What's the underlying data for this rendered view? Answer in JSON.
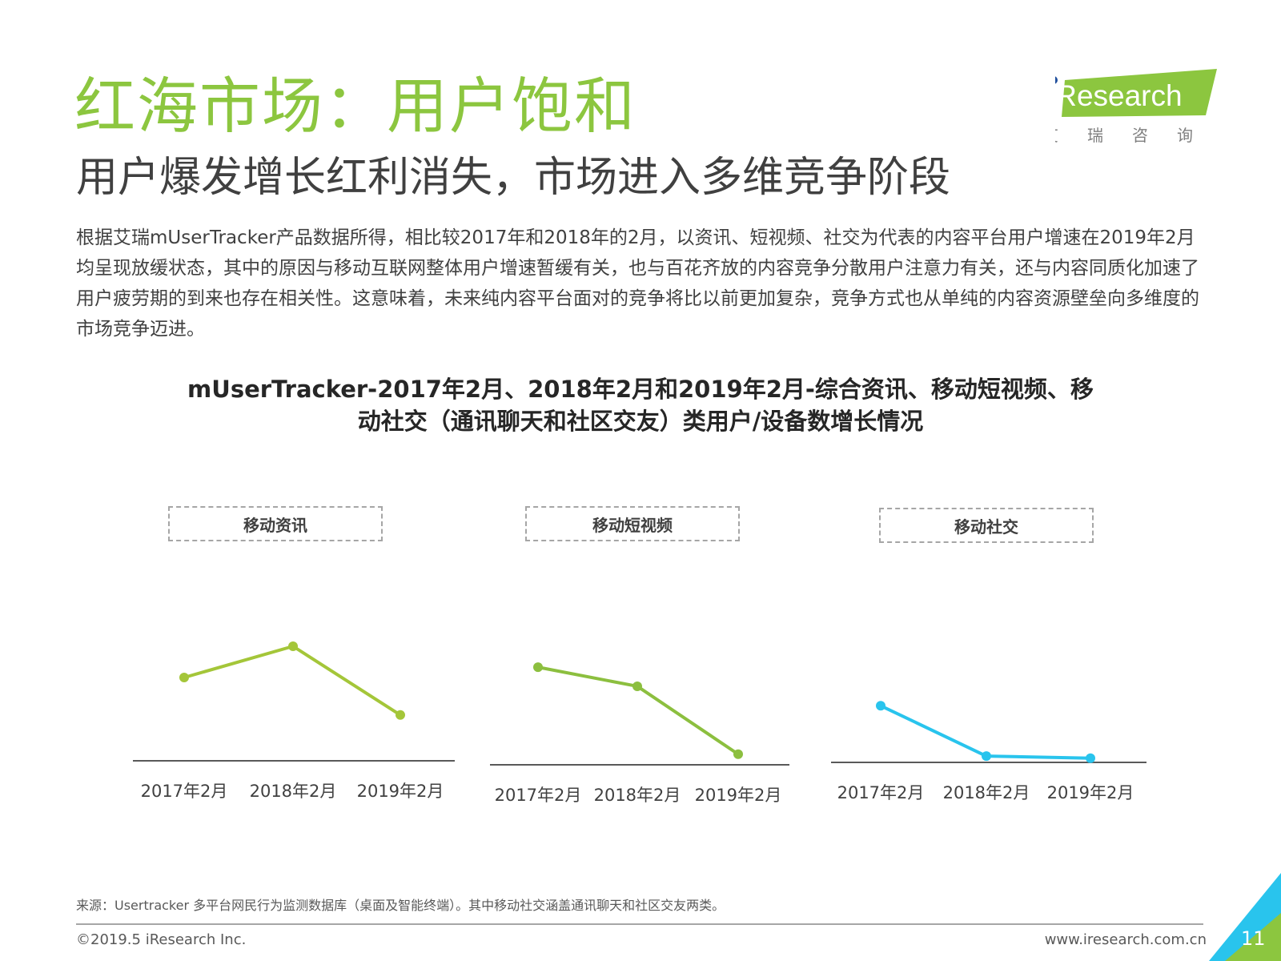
{
  "header": {
    "title": "红海市场：用户饱和",
    "subtitle": "用户爆发增长红利消失，市场进入多维竞争阶段",
    "body": "根据艾瑞mUserTracker产品数据所得，相比较2017年和2018年的2月，以资讯、短视频、社交为代表的内容平台用户增速在2019年2月均呈现放缓状态，其中的原因与移动互联网整体用户增速暂缓有关，也与百花齐放的内容竞争分散用户注意力有关，还与内容同质化加速了用户疲劳期的到来也存在相关性。这意味着，未来纯内容平台面对的竞争将比以前更加复杂，竞争方式也从单纯的内容资源壁垒向多维度的市场竞争迈进。"
  },
  "logo": {
    "brand": "iResearch",
    "cn": [
      "艾",
      "瑞",
      "咨",
      "询"
    ],
    "color": "#8cc63f"
  },
  "chart_title": {
    "line1": "mUserTracker-2017年2月、2018年2月和2019年2月-综合资讯、移动短视频、移",
    "line2": "动社交（通讯聊天和社区交友）类用户/设备数增长情况"
  },
  "chart_data": [
    {
      "type": "line",
      "label": "移动资讯",
      "categories": [
        "2017年2月",
        "2018年2月",
        "2019年2月"
      ],
      "values": [
        0.4,
        0.55,
        0.22
      ],
      "ylim": [
        0,
        1.0
      ],
      "color": "#a4c639",
      "grid": false,
      "legend": "none"
    },
    {
      "type": "line",
      "label": "移动短视频",
      "categories": [
        "2017年2月",
        "2018年2月",
        "2019年2月"
      ],
      "values": [
        0.46,
        0.37,
        0.05
      ],
      "ylim": [
        0,
        1.0
      ],
      "color": "#8cbf3f",
      "grid": false,
      "legend": "none"
    },
    {
      "type": "line",
      "label": "移动社交",
      "categories": [
        "2017年2月",
        "2018年2月",
        "2019年2月"
      ],
      "values": [
        0.27,
        0.03,
        0.02
      ],
      "ylim": [
        0,
        1.0
      ],
      "color": "#29c4ed",
      "grid": false,
      "legend": "none"
    }
  ],
  "footer": {
    "source": "来源：Usertracker 多平台网民行为监测数据库（桌面及智能终端）。其中移动社交涵盖通讯聊天和社区交友两类。",
    "copyright": "©2019.5 iResearch Inc.",
    "website": "www.iresearch.com.cn",
    "page_number": "11"
  }
}
